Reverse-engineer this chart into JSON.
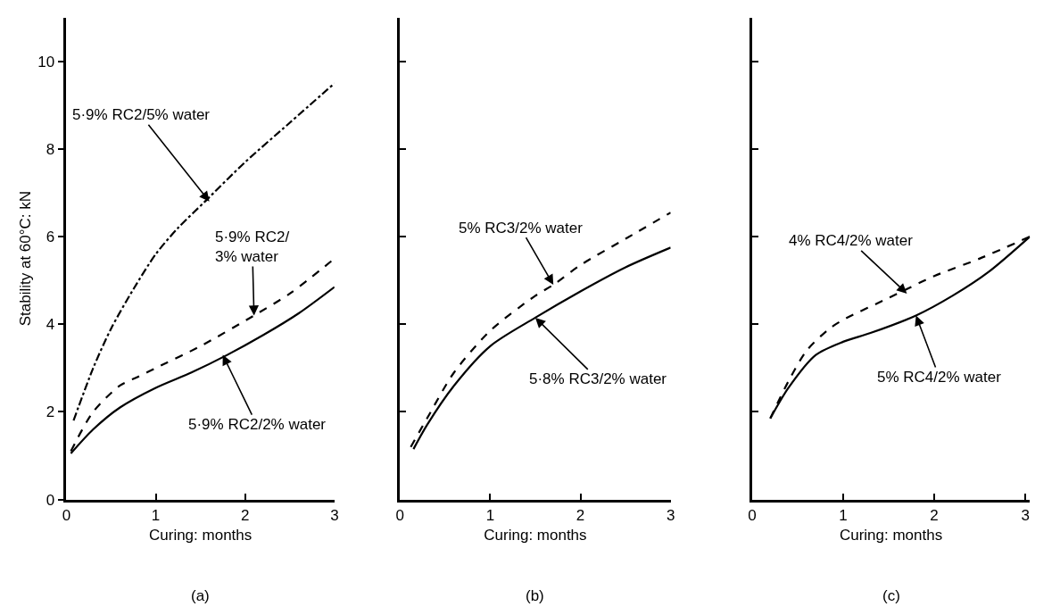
{
  "chart_data": [
    {
      "type": "line",
      "title": "(a)",
      "xlabel": "Curing: months",
      "ylabel": "Stability at 60°C: kN",
      "xlim": [
        0,
        3
      ],
      "ylim": [
        0,
        11
      ],
      "xticks": [
        0,
        1,
        2,
        3
      ],
      "yticks": [
        0,
        2,
        4,
        6,
        8,
        10
      ],
      "series": [
        {
          "color": "#000000",
          "line_style": "dashdot",
          "x": [
            0.08,
            0.3,
            0.5,
            0.75,
            1.0,
            1.25,
            1.55,
            2.0,
            2.5,
            3.0
          ],
          "values": [
            1.8,
            3.0,
            3.9,
            4.8,
            5.6,
            6.2,
            6.8,
            7.7,
            8.6,
            9.5
          ]
        },
        {
          "color": "#000000",
          "line_style": "dashed",
          "x": [
            0.05,
            0.3,
            0.6,
            0.8,
            1.0,
            1.5,
            2.1,
            2.5,
            3.0
          ],
          "values": [
            1.1,
            2.0,
            2.6,
            2.8,
            3.0,
            3.5,
            4.2,
            4.7,
            5.5
          ]
        },
        {
          "color": "#000000",
          "line_style": "solid",
          "x": [
            0.05,
            0.3,
            0.6,
            1.0,
            1.4,
            1.8,
            2.2,
            2.6,
            3.0
          ],
          "values": [
            1.05,
            1.6,
            2.1,
            2.55,
            2.9,
            3.3,
            3.75,
            4.25,
            4.85
          ]
        }
      ],
      "annotations": [
        {
          "text": "5·9% RC2/5% water",
          "x": 1.6,
          "y": 6.8
        },
        {
          "text": "5·9% RC2/\n3% water",
          "x": 2.1,
          "y": 4.2
        },
        {
          "text": "5·9% RC2/2% water",
          "x": 1.75,
          "y": 3.3
        }
      ]
    },
    {
      "type": "line",
      "title": "(b)",
      "xlabel": "Curing: months",
      "xlim": [
        0,
        3
      ],
      "ylim": [
        0,
        11
      ],
      "xticks": [
        0,
        1,
        2,
        3
      ],
      "yticks": [
        0,
        2,
        4,
        6,
        8,
        10
      ],
      "tick_labels": "x",
      "series": [
        {
          "color": "#000000",
          "line_style": "dashed",
          "x": [
            0.12,
            0.3,
            0.6,
            1.0,
            1.5,
            1.7,
            2.0,
            2.5,
            3.0
          ],
          "values": [
            1.2,
            1.85,
            2.9,
            3.85,
            4.65,
            4.9,
            5.35,
            5.95,
            6.55
          ]
        },
        {
          "color": "#000000",
          "line_style": "solid",
          "x": [
            0.15,
            0.3,
            0.6,
            1.0,
            1.5,
            2.0,
            2.5,
            3.0
          ],
          "values": [
            1.15,
            1.7,
            2.6,
            3.5,
            4.15,
            4.75,
            5.3,
            5.75
          ]
        }
      ],
      "annotations": [
        {
          "text": "5% RC3/2% water",
          "x": 1.7,
          "y": 4.9
        },
        {
          "text": "5·8% RC3/2% water",
          "x": 1.5,
          "y": 4.15
        }
      ]
    },
    {
      "type": "line",
      "title": "(c)",
      "xlabel": "Curing: months",
      "xlim": [
        0,
        3.05
      ],
      "ylim": [
        0,
        11
      ],
      "xticks": [
        0,
        1,
        2,
        3
      ],
      "yticks": [
        0,
        2,
        4,
        6,
        8,
        10
      ],
      "tick_labels": "x",
      "series": [
        {
          "color": "#000000",
          "line_style": "dashed",
          "x": [
            0.2,
            0.4,
            0.6,
            0.85,
            1.0,
            1.5,
            2.0,
            2.5,
            3.05
          ],
          "values": [
            1.85,
            2.7,
            3.4,
            3.9,
            4.1,
            4.6,
            5.1,
            5.5,
            6.0
          ]
        },
        {
          "color": "#000000",
          "line_style": "solid",
          "x": [
            0.2,
            0.4,
            0.7,
            1.0,
            1.3,
            1.8,
            2.2,
            2.6,
            3.05
          ],
          "values": [
            1.85,
            2.55,
            3.3,
            3.6,
            3.8,
            4.2,
            4.65,
            5.2,
            6.0
          ]
        }
      ],
      "annotations": [
        {
          "text": "4% RC4/2% water",
          "x": 1.7,
          "y": 4.7
        },
        {
          "text": "5% RC4/2% water",
          "x": 1.8,
          "y": 4.2
        }
      ]
    }
  ]
}
